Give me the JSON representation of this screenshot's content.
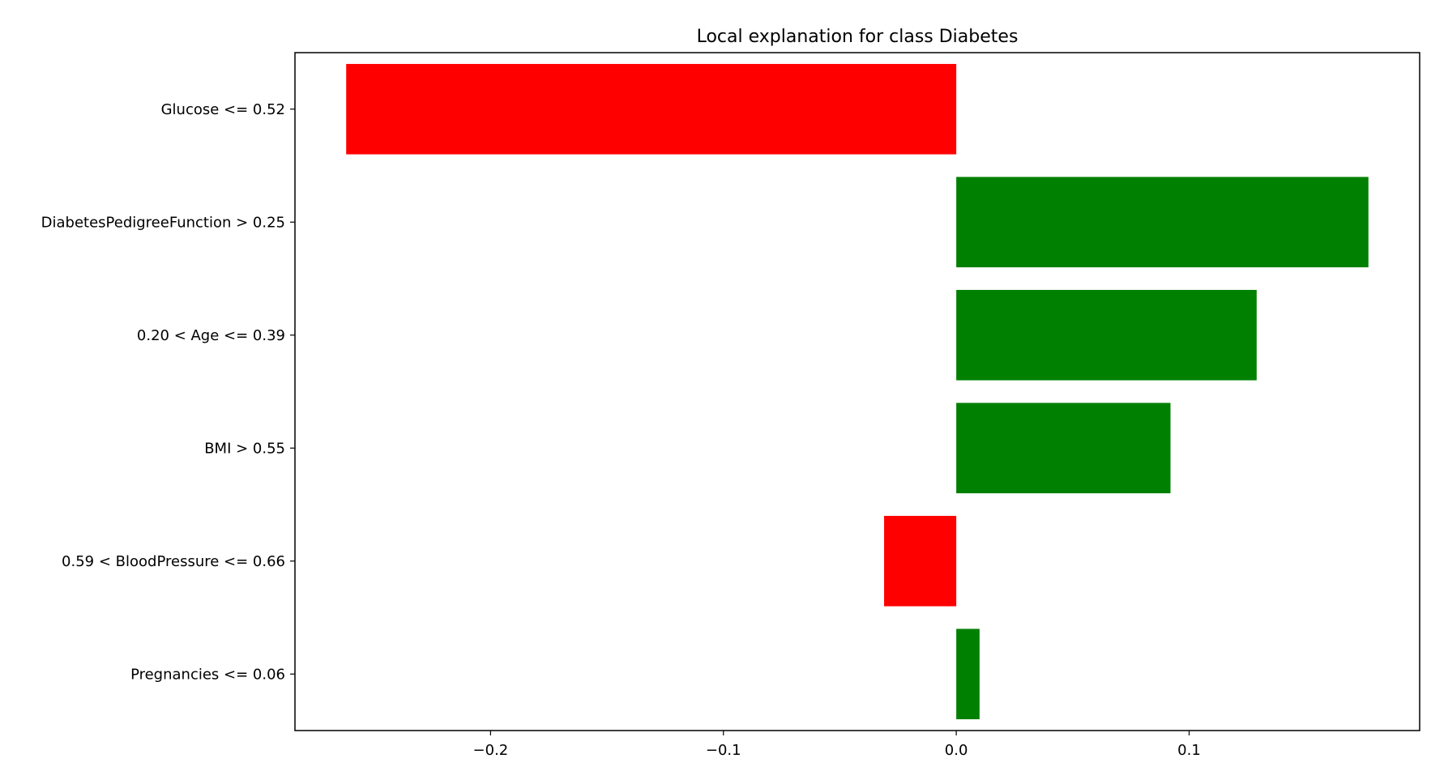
{
  "chart_data": {
    "type": "bar",
    "orientation": "horizontal",
    "title": "Local explanation for class Diabetes",
    "xlabel": "",
    "ylabel": "",
    "categories": [
      "Glucose <= 0.52",
      "DiabetesPedigreeFunction > 0.25",
      "0.20 < Age <= 0.39",
      "BMI > 0.55",
      "0.59 < BloodPressure <= 0.66",
      "Pregnancies <= 0.06"
    ],
    "values": [
      -0.262,
      0.177,
      0.129,
      0.092,
      -0.031,
      0.01
    ],
    "xlim": [
      -0.284,
      0.199
    ],
    "xticks": [
      -0.2,
      -0.1,
      0.0,
      0.1
    ],
    "xtick_labels": [
      "−0.2",
      "−0.1",
      "0.0",
      "0.1"
    ],
    "colors": {
      "positive": "#008000",
      "negative": "#ff0000"
    },
    "grid": false,
    "legend": "none"
  }
}
